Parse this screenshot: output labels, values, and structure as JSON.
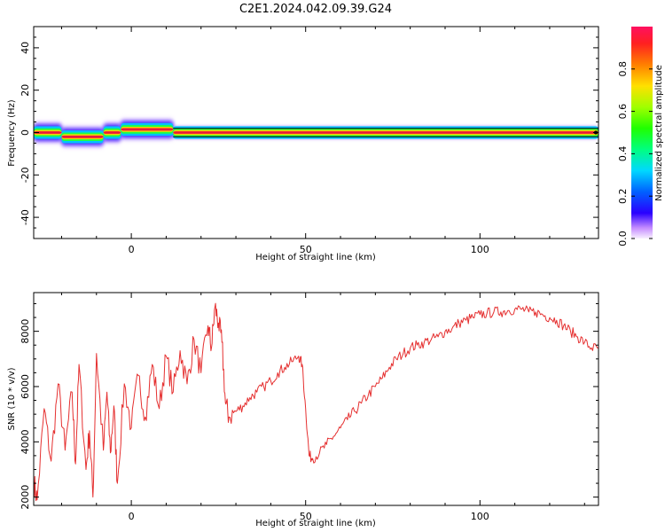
{
  "title": "C2E1.2024.042.09.39.G24",
  "colors": {
    "snr_line": "#e53030",
    "spectrum_core": "#e8193c"
  },
  "chart_data": [
    {
      "type": "heatmap",
      "xlabel": "Height of straight line (km)",
      "ylabel": "Frequency (Hz)",
      "xlim": [
        -28,
        134
      ],
      "ylim": [
        -50,
        50
      ],
      "xticks": [
        0,
        50,
        100
      ],
      "yticks": [
        -40,
        -20,
        0,
        20,
        40
      ],
      "colorbar": {
        "label": "Normalized spectral amplitude",
        "range": [
          0.0,
          1.0
        ],
        "ticks": [
          "0.0",
          "0.2",
          "0.4",
          "0.6",
          "0.8"
        ],
        "colormap": "rainbow"
      },
      "dominant_frequency_segments": [
        {
          "x": [
            -28,
            -20
          ],
          "freq": 0
        },
        {
          "x": [
            -20,
            -8
          ],
          "freq": -2
        },
        {
          "x": [
            -8,
            -3
          ],
          "freq": 0
        },
        {
          "x": [
            -3,
            12
          ],
          "freq": 1.5
        },
        {
          "x": [
            12,
            134
          ],
          "freq": 0
        }
      ]
    },
    {
      "type": "line",
      "xlabel": "Height of straight line (km)",
      "ylabel": "SNR (10 * v/v)",
      "xlim": [
        -28,
        134
      ],
      "ylim": [
        1700,
        9400
      ],
      "xticks": [
        0,
        50,
        100
      ],
      "yticks": [
        2000,
        4000,
        6000,
        8000
      ],
      "series": [
        {
          "x": [
            -28,
            -27,
            -25,
            -23,
            -21,
            -19,
            -17,
            -16,
            -15,
            -13,
            -12,
            -11,
            -10,
            -8,
            -7,
            -6,
            -5,
            -4,
            -2,
            0,
            2,
            4,
            6,
            8,
            10,
            12,
            14,
            16,
            18,
            20,
            22,
            23,
            24,
            25,
            26,
            27,
            28,
            30,
            32,
            34,
            36,
            38,
            40,
            42,
            44,
            46,
            48,
            49,
            50,
            51,
            52,
            54,
            56,
            58,
            60,
            62,
            64,
            66,
            68,
            70,
            72,
            74,
            76,
            78,
            80,
            82,
            84,
            86,
            88,
            90,
            92,
            94,
            96,
            98,
            100,
            102,
            104,
            106,
            108,
            110,
            112,
            114,
            116,
            118,
            120,
            122,
            124,
            126,
            128,
            130,
            132,
            134
          ],
          "y": [
            2600,
            1900,
            5200,
            3300,
            6100,
            3700,
            5800,
            3200,
            6800,
            3000,
            4400,
            2000,
            7200,
            3700,
            5800,
            3600,
            5300,
            2500,
            6100,
            4500,
            6400,
            4900,
            6800,
            5200,
            7100,
            5800,
            7300,
            6100,
            7700,
            6500,
            8200,
            7400,
            8900,
            8300,
            7600,
            5400,
            4900,
            5100,
            5300,
            5600,
            5800,
            6000,
            6200,
            6500,
            6700,
            6900,
            7100,
            6800,
            5200,
            3500,
            3400,
            3600,
            3900,
            4200,
            4500,
            4800,
            5100,
            5400,
            5700,
            6000,
            6300,
            6700,
            7000,
            7200,
            7400,
            7500,
            7600,
            7700,
            7800,
            8000,
            8100,
            8300,
            8400,
            8500,
            8600,
            8650,
            8700,
            8700,
            8750,
            8800,
            8800,
            8700,
            8700,
            8600,
            8500,
            8400,
            8200,
            8000,
            7800,
            7600,
            7400,
            7400
          ]
        }
      ]
    }
  ]
}
